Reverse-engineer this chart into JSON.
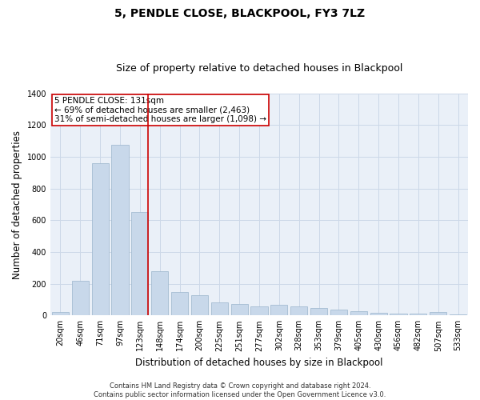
{
  "title": "5, PENDLE CLOSE, BLACKPOOL, FY3 7LZ",
  "subtitle": "Size of property relative to detached houses in Blackpool",
  "xlabel": "Distribution of detached houses by size in Blackpool",
  "ylabel": "Number of detached properties",
  "categories": [
    "20sqm",
    "46sqm",
    "71sqm",
    "97sqm",
    "123sqm",
    "148sqm",
    "174sqm",
    "200sqm",
    "225sqm",
    "251sqm",
    "277sqm",
    "302sqm",
    "328sqm",
    "353sqm",
    "379sqm",
    "405sqm",
    "430sqm",
    "456sqm",
    "482sqm",
    "507sqm",
    "533sqm"
  ],
  "values": [
    20,
    220,
    960,
    1075,
    650,
    280,
    150,
    130,
    80,
    70,
    55,
    65,
    55,
    45,
    35,
    25,
    15,
    10,
    10,
    20,
    8
  ],
  "bar_color": "#c8d8ea",
  "bar_edge_color": "#9ab4cc",
  "property_line_color": "#cc0000",
  "annotation_line1": "5 PENDLE CLOSE: 131sqm",
  "annotation_line2": "← 69% of detached houses are smaller (2,463)",
  "annotation_line3": "31% of semi-detached houses are larger (1,098) →",
  "annotation_box_color": "#ffffff",
  "annotation_box_edge": "#cc0000",
  "ylim": [
    0,
    1400
  ],
  "yticks": [
    0,
    200,
    400,
    600,
    800,
    1000,
    1200,
    1400
  ],
  "grid_color": "#ccd8e8",
  "background_color": "#eaf0f8",
  "footer_text": "Contains HM Land Registry data © Crown copyright and database right 2024.\nContains public sector information licensed under the Open Government Licence v3.0.",
  "title_fontsize": 10,
  "subtitle_fontsize": 9,
  "axis_label_fontsize": 8.5,
  "tick_fontsize": 7,
  "annotation_fontsize": 7.5,
  "footer_fontsize": 6
}
